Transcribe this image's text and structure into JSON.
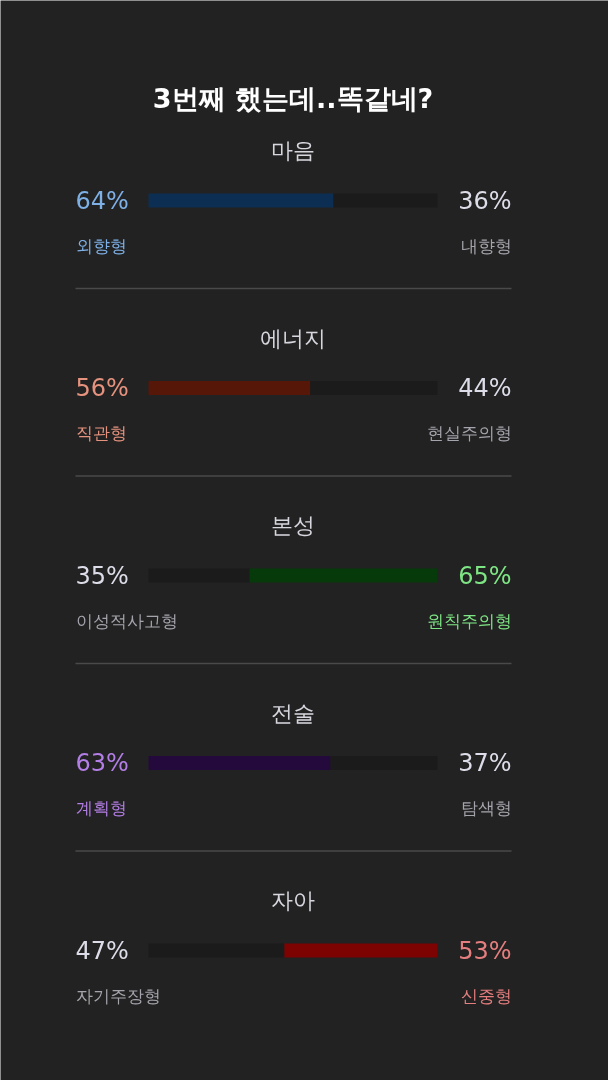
{
  "chart_data": {
    "type": "bar",
    "orientation": "horizontal",
    "stacked": true,
    "title": "3번째 했는데..똑같네?",
    "categories": [
      "마음",
      "에너지",
      "본성",
      "전술",
      "자아"
    ],
    "xlim": [
      0,
      100
    ],
    "tick_labels": false,
    "legend": false,
    "series": [
      {
        "name": "외향형",
        "color": "#0c2e52",
        "values": [
          64,
          null,
          null,
          null,
          null
        ],
        "value_labels": [
          "64%",
          null,
          null,
          null,
          null
        ]
      },
      {
        "name": "내향형",
        "color": "#1b1b1b",
        "values": [
          36,
          null,
          null,
          null,
          null
        ],
        "value_labels": [
          "36%",
          null,
          null,
          null,
          null
        ]
      },
      {
        "name": "직관형",
        "color": "#561708",
        "values": [
          null,
          56,
          null,
          null,
          null
        ],
        "value_labels": [
          null,
          "56%",
          null,
          null,
          null
        ]
      },
      {
        "name": "현실주의형",
        "color": "#1b1b1b",
        "values": [
          null,
          44,
          null,
          null,
          null
        ],
        "value_labels": [
          null,
          "44%",
          null,
          null,
          null
        ]
      },
      {
        "name": "이성적사고형",
        "color": "#1b1b1b",
        "values": [
          null,
          null,
          35,
          null,
          null
        ],
        "value_labels": [
          null,
          null,
          "35%",
          null,
          null
        ]
      },
      {
        "name": "원칙주의형",
        "color": "#073a0a",
        "values": [
          null,
          null,
          65,
          null,
          null
        ],
        "value_labels": [
          null,
          null,
          "65%",
          null,
          null
        ]
      },
      {
        "name": "계획형",
        "color": "#240a3c",
        "values": [
          null,
          null,
          null,
          63,
          null
        ],
        "value_labels": [
          null,
          null,
          null,
          "63%",
          null
        ]
      },
      {
        "name": "탐색형",
        "color": "#1b1b1b",
        "values": [
          null,
          null,
          null,
          37,
          null
        ],
        "value_labels": [
          null,
          null,
          null,
          "37%",
          null
        ]
      },
      {
        "name": "자기주장형",
        "color": "#1b1b1b",
        "values": [
          null,
          null,
          null,
          null,
          47
        ],
        "value_labels": [
          null,
          null,
          null,
          null,
          "47%"
        ]
      },
      {
        "name": "신중형",
        "color": "#7d0303",
        "values": [
          null,
          null,
          null,
          null,
          53
        ],
        "value_labels": [
          null,
          null,
          null,
          null,
          "53%"
        ]
      }
    ]
  }
}
